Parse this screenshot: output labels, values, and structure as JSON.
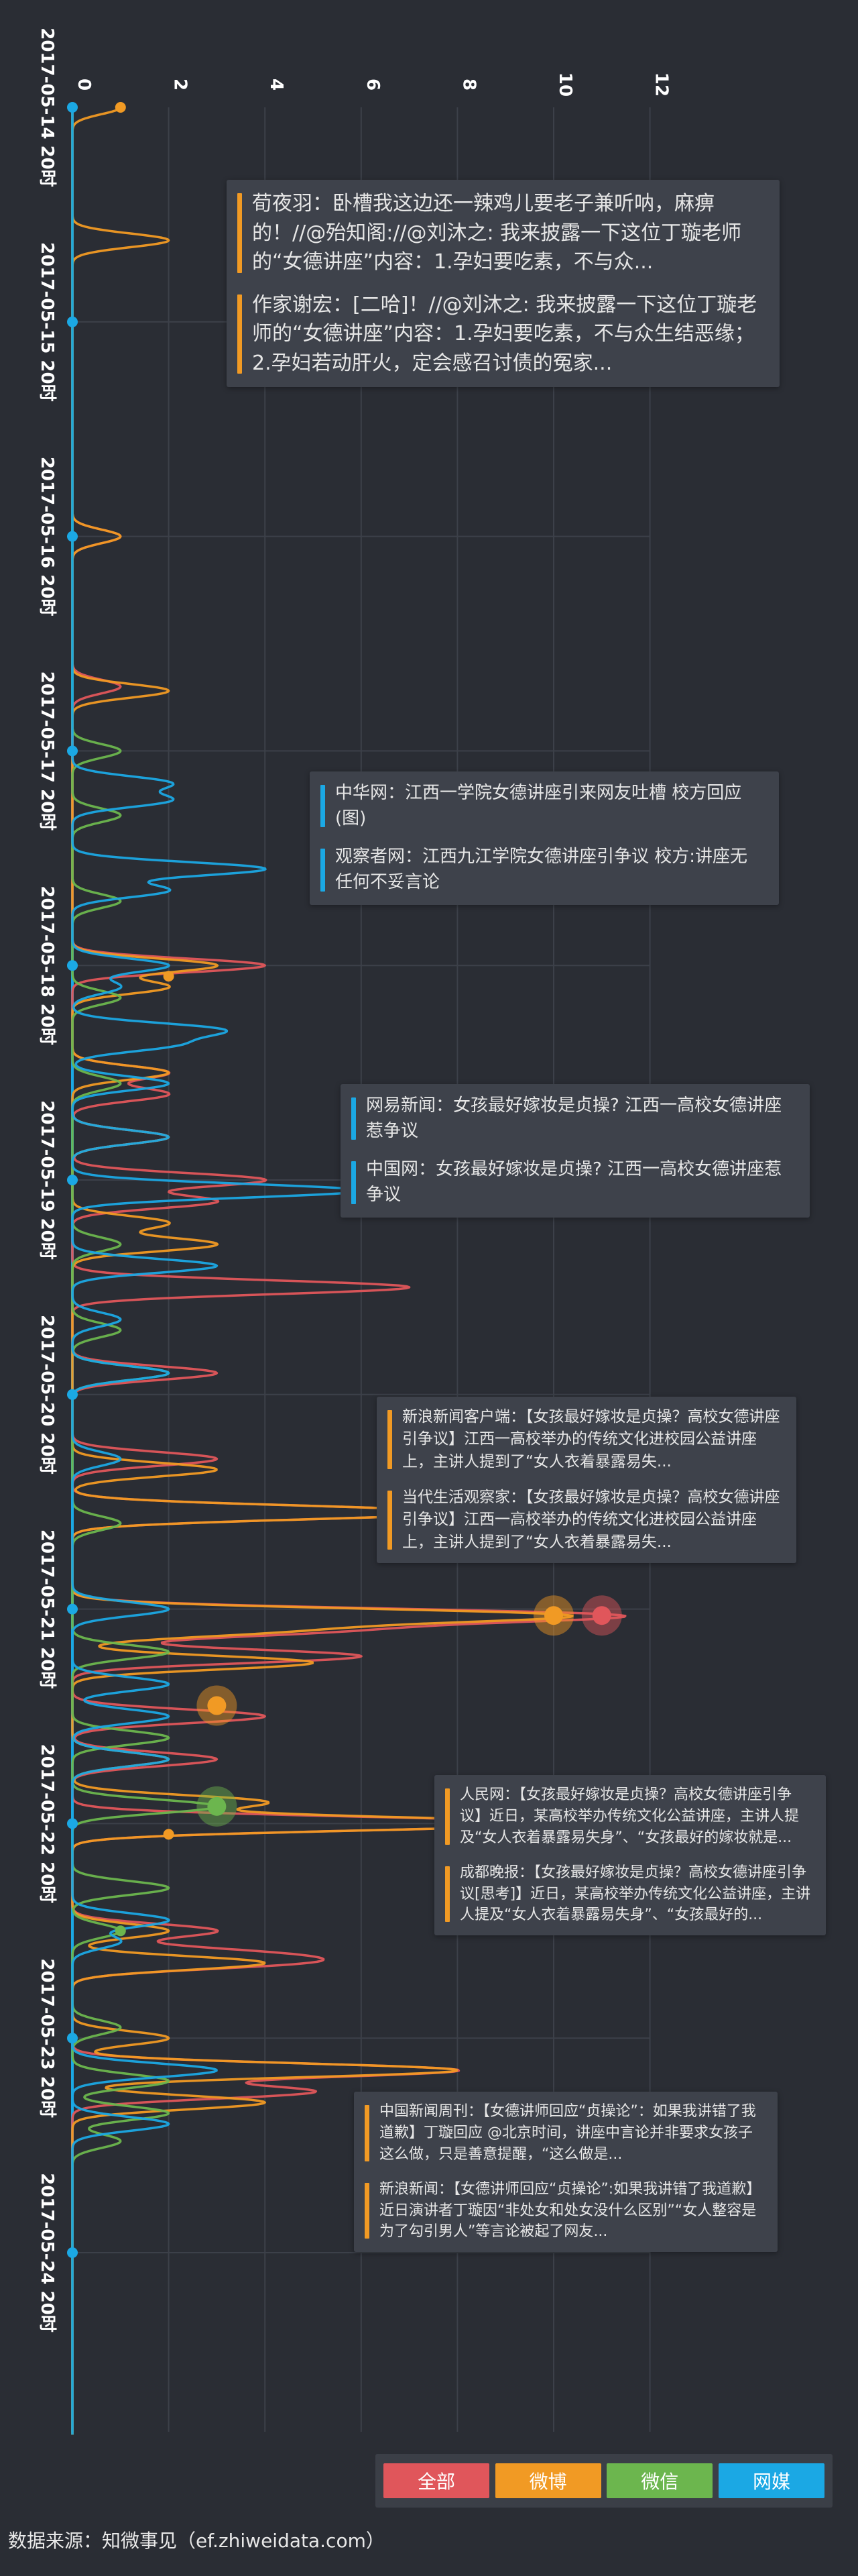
{
  "chart_data": {
    "type": "line",
    "orientation": "vertical-time",
    "value_axis": {
      "ticks": [
        "0",
        "2",
        "4",
        "6",
        "8",
        "10",
        "12"
      ],
      "range": [
        0,
        12
      ]
    },
    "time_axis": {
      "labels": [
        "2017-05-14 20时",
        "2017-05-15 20时",
        "2017-05-16 20时",
        "2017-05-17 20时",
        "2017-05-18 20时",
        "2017-05-19 20时",
        "2017-05-20 20时",
        "2017-05-21 20时",
        "2017-05-22 20时",
        "2017-05-23 20时",
        "2017-05-24 20时"
      ]
    },
    "series": [
      {
        "name": "全部",
        "color": "#e0565b",
        "peaks": [
          [
            2.0,
            1
          ],
          [
            2.7,
            1
          ],
          [
            4.0,
            4
          ],
          [
            4.5,
            2
          ],
          [
            4.6,
            2
          ],
          [
            4.8,
            2
          ],
          [
            5.0,
            4
          ],
          [
            5.1,
            3
          ],
          [
            5.5,
            7
          ],
          [
            5.9,
            3
          ],
          [
            6.3,
            3
          ],
          [
            6.55,
            8
          ],
          [
            7.03,
            11
          ],
          [
            7.1,
            5
          ],
          [
            7.22,
            6
          ],
          [
            7.5,
            4
          ],
          [
            7.7,
            3
          ],
          [
            8.0,
            10
          ],
          [
            8.5,
            3
          ],
          [
            8.6,
            3
          ],
          [
            8.65,
            4
          ],
          [
            9.15,
            8
          ],
          [
            9.25,
            5
          ]
        ]
      },
      {
        "name": "微博",
        "color": "#f19a24",
        "peaks": [
          [
            0.0,
            1
          ],
          [
            0.62,
            2
          ],
          [
            2.0,
            1
          ],
          [
            2.72,
            2
          ],
          [
            4.0,
            3
          ],
          [
            4.1,
            2
          ],
          [
            4.5,
            2
          ],
          [
            4.8,
            2
          ],
          [
            5.2,
            2
          ],
          [
            5.3,
            3
          ],
          [
            6.35,
            3
          ],
          [
            6.55,
            8
          ],
          [
            7.03,
            10
          ],
          [
            7.1,
            4
          ],
          [
            7.25,
            5
          ],
          [
            7.7,
            2
          ],
          [
            7.9,
            4
          ],
          [
            8.0,
            10
          ],
          [
            8.5,
            2
          ],
          [
            8.65,
            4
          ],
          [
            9.0,
            2
          ],
          [
            9.15,
            8
          ],
          [
            9.3,
            4
          ]
        ]
      },
      {
        "name": "微信",
        "color": "#6cb64e",
        "peaks": [
          [
            3.0,
            1
          ],
          [
            3.3,
            1
          ],
          [
            3.7,
            1
          ],
          [
            4.15,
            1
          ],
          [
            4.55,
            1
          ],
          [
            5.3,
            1
          ],
          [
            5.7,
            1
          ],
          [
            5.9,
            2
          ],
          [
            6.6,
            1
          ],
          [
            7.2,
            2
          ],
          [
            7.6,
            2
          ],
          [
            7.92,
            3
          ],
          [
            8.3,
            2
          ],
          [
            8.5,
            1
          ],
          [
            8.95,
            1
          ],
          [
            9.2,
            2
          ],
          [
            9.35,
            2
          ],
          [
            9.48,
            1
          ]
        ]
      },
      {
        "name": "网媒",
        "color": "#1ba8e4",
        "peaks": [
          [
            3.15,
            2
          ],
          [
            3.23,
            2
          ],
          [
            3.55,
            4
          ],
          [
            3.65,
            2
          ],
          [
            4.0,
            2
          ],
          [
            4.1,
            1
          ],
          [
            4.3,
            3
          ],
          [
            4.37,
            2
          ],
          [
            4.55,
            2
          ],
          [
            4.8,
            2
          ],
          [
            5.05,
            6
          ],
          [
            5.4,
            3
          ],
          [
            5.65,
            1
          ],
          [
            5.9,
            2
          ],
          [
            6.3,
            1
          ],
          [
            7.0,
            2
          ],
          [
            7.35,
            2
          ],
          [
            7.5,
            2
          ],
          [
            7.7,
            2
          ],
          [
            8.45,
            2
          ],
          [
            8.55,
            1
          ],
          [
            9.15,
            3
          ],
          [
            9.4,
            2
          ]
        ]
      }
    ],
    "markers": [
      {
        "series": "微博",
        "t": 0.0,
        "value": 1
      },
      {
        "series": "微博",
        "t": 4.05,
        "value": 2
      },
      {
        "series": "网媒",
        "t": 5.05,
        "value": 6
      },
      {
        "series": "微博",
        "t": 7.03,
        "value": 10
      },
      {
        "series": "全部",
        "t": 7.03,
        "value": 11
      },
      {
        "series": "微博",
        "t": 7.45,
        "value": 3
      },
      {
        "series": "微信",
        "t": 7.92,
        "value": 3
      },
      {
        "series": "微博",
        "t": 8.05,
        "value": 2
      },
      {
        "series": "微信",
        "t": 8.5,
        "value": 1
      }
    ],
    "annotations": [
      {
        "color": "#f19a24",
        "items": [
          "荀夜羽：卧槽我这边还一辣鸡儿要老子兼听呐，麻痹的！//@殆知阁://@刘沐之: 我来披露一下这位丁璇老师的“女德讲座”内容：1.孕妇要吃素，不与众...",
          "作家谢宏：[二哈]！//@刘沐之: 我来披露一下这位丁璇老师的“女德讲座”内容：1.孕妇要吃素，不与众生结恶缘；2.孕妇若动肝火，定会感召讨债的冤家..."
        ]
      },
      {
        "color": "#1ba8e4",
        "items": [
          "中华网：江西一学院女德讲座引来网友吐槽 校方回应(图)",
          "观察者网：江西九江学院女德讲座引争议 校方:讲座无任何不妥言论"
        ]
      },
      {
        "color": "#1ba8e4",
        "items": [
          "网易新闻：女孩最好嫁妆是贞操? 江西一高校女德讲座惹争议",
          "中国网：女孩最好嫁妆是贞操? 江西一高校女德讲座惹争议"
        ]
      },
      {
        "color": "#f19a24",
        "items": [
          "新浪新闻客户端：【女孩最好嫁妆是贞操？高校女德讲座引争议】江西一高校举办的传统文化进校园公益讲座上，主讲人提到了“女人衣着暴露易失...",
          "当代生活观察家：【女孩最好嫁妆是贞操？高校女德讲座引争议】江西一高校举办的传统文化进校园公益讲座上，主讲人提到了“女人衣着暴露易失..."
        ]
      },
      {
        "color": "#f19a24",
        "items": [
          "人民网：【女孩最好嫁妆是贞操？高校女德讲座引争议】近日，某高校举办传统文化公益讲座，主讲人提及“女人衣着暴露易失身”、“女孩最好的嫁妆就是...",
          "成都晚报：【女孩最好嫁妆是贞操？高校女德讲座引争议[思考]】近日，某高校举办传统文化公益讲座，主讲人提及“女人衣着暴露易失身”、“女孩最好的..."
        ]
      },
      {
        "color": "#f19a24",
        "items": [
          "中国新闻周刊：【女德讲师回应“贞操论”：如果我讲错了我道歉】丁璇回应 @北京时间，讲座中言论并非要求女孩子这么做，只是善意提醒，“这么做是...",
          "新浪新闻：【女德讲师回应“贞操论”:如果我讲错了我道歉】近日演讲者丁璇因“非处女和处女没什么区别”“女人整容是为了勾引男人”等言论被起了网友..."
        ]
      }
    ],
    "legend": [
      "全部",
      "微博",
      "微信",
      "网媒"
    ],
    "grid": true
  },
  "footer": {
    "source": "数据来源：知微事见（ef.zhiweidata.com）"
  }
}
